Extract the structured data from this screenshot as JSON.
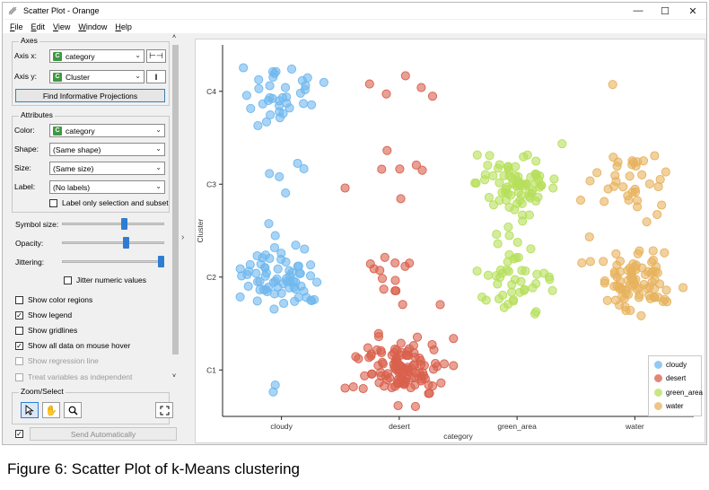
{
  "window": {
    "title": "Scatter Plot - Orange"
  },
  "menu": [
    {
      "first": "F",
      "rest": "ile"
    },
    {
      "first": "E",
      "rest": "dit"
    },
    {
      "first": "V",
      "rest": "iew"
    },
    {
      "first": "W",
      "rest": "indow"
    },
    {
      "first": "H",
      "rest": "elp"
    }
  ],
  "axes": {
    "title": "Axes",
    "x_label": "Axis x:",
    "x_value": "category",
    "y_label": "Axis y:",
    "y_value": "Cluster",
    "find_button": "Find Informative Projections"
  },
  "attributes": {
    "title": "Attributes",
    "color_label": "Color:",
    "color_value": "category",
    "shape_label": "Shape:",
    "shape_value": "(Same shape)",
    "size_label": "Size:",
    "size_value": "(Same size)",
    "label_label": "Label:",
    "label_value": "(No labels)",
    "label_only": "Label only selection and subset"
  },
  "sliders": {
    "symbol_size_label": "Symbol size:",
    "symbol_size": 0.62,
    "opacity_label": "Opacity:",
    "opacity": 0.64,
    "jittering_label": "Jittering:",
    "jittering": 1.0,
    "jitter_numeric": "Jitter numeric values"
  },
  "options": [
    {
      "label": "Show color regions",
      "checked": false,
      "disabled": false
    },
    {
      "label": "Show legend",
      "checked": true,
      "disabled": false
    },
    {
      "label": "Show gridlines",
      "checked": false,
      "disabled": false
    },
    {
      "label": "Show all data on mouse hover",
      "checked": true,
      "disabled": false
    },
    {
      "label": "Show regression line",
      "checked": false,
      "disabled": true
    },
    {
      "label": "Treat variables as independent",
      "checked": false,
      "disabled": true
    }
  ],
  "zoom": {
    "title": "Zoom/Select"
  },
  "send_button": "Send Automatically",
  "caption": "Figure 6: Scatter Plot of k-Means clustering",
  "colors": {
    "cloudy": "#6fb8ee",
    "desert": "#d9604c",
    "green_area": "#b6e05a",
    "water": "#e7b25e",
    "accent": "#2f7dd1"
  },
  "chart_data": {
    "type": "scatter",
    "xlabel": "category",
    "ylabel": "Cluster",
    "x_categories": [
      "cloudy",
      "desert",
      "green_area",
      "water"
    ],
    "y_categories": [
      "C1",
      "C2",
      "C3",
      "C4"
    ],
    "legend": [
      "cloudy",
      "desert",
      "green_area",
      "water"
    ],
    "legend_position": "bottom-right",
    "grid": false,
    "counts": [
      {
        "category": "cloudy",
        "cluster": "C1",
        "n": 2
      },
      {
        "category": "cloudy",
        "cluster": "C2",
        "n": 68
      },
      {
        "category": "cloudy",
        "cluster": "C3",
        "n": 6
      },
      {
        "category": "cloudy",
        "cluster": "C4",
        "n": 36
      },
      {
        "category": "desert",
        "cluster": "C1",
        "n": 115
      },
      {
        "category": "desert",
        "cluster": "C2",
        "n": 14
      },
      {
        "category": "desert",
        "cluster": "C3",
        "n": 7
      },
      {
        "category": "desert",
        "cluster": "C4",
        "n": 5
      },
      {
        "category": "green_area",
        "cluster": "C1",
        "n": 0
      },
      {
        "category": "green_area",
        "cluster": "C2",
        "n": 45
      },
      {
        "category": "green_area",
        "cluster": "C3",
        "n": 75
      },
      {
        "category": "green_area",
        "cluster": "C4",
        "n": 0
      },
      {
        "category": "water",
        "cluster": "C1",
        "n": 0
      },
      {
        "category": "water",
        "cluster": "C2",
        "n": 85
      },
      {
        "category": "water",
        "cluster": "C3",
        "n": 35
      },
      {
        "category": "water",
        "cluster": "C4",
        "n": 1
      }
    ]
  }
}
